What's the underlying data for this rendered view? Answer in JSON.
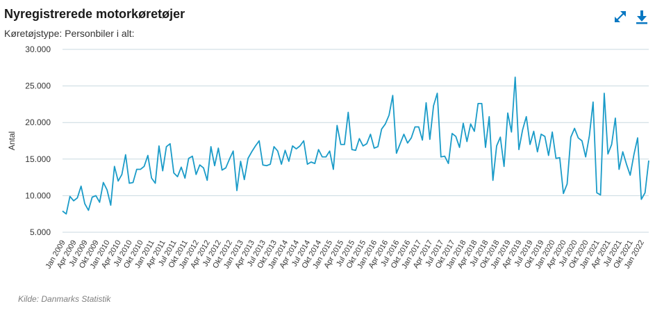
{
  "header": {
    "title": "Nyregistrerede motorkøretøjer",
    "subtitle": "Køretøjstype: Personbiler i alt:"
  },
  "toolbar": {
    "expand_icon": "expand-arrows-icon",
    "download_icon": "download-icon",
    "accent_color": "#0a78c2"
  },
  "source": "Kilde: Danmarks Statistik",
  "chart_data": {
    "type": "line",
    "ylabel": "Antal",
    "xlabel": "",
    "ylim": [
      5000,
      30000
    ],
    "yticks": [
      "5.000",
      "10.000",
      "15.000",
      "20.000",
      "25.000",
      "30.000"
    ],
    "ytick_values": [
      5000,
      10000,
      15000,
      20000,
      25000,
      30000
    ],
    "grid": true,
    "line_color": "#1a9bc8",
    "x_start": "2009-01",
    "xtick_labels": [
      "Jan 2009",
      "Apr 2009",
      "Jul 2009",
      "Okt 2009",
      "Jan 2010",
      "Apr 2010",
      "Jul 2010",
      "Okt 2010",
      "Jan 2011",
      "Apr 2011",
      "Jul 2011",
      "Okt 2011",
      "Jan 2012",
      "Apr 2012",
      "Jul 2012",
      "Okt 2012",
      "Jan 2013",
      "Apr 2013",
      "Jul 2013",
      "Okt 2013",
      "Jan 2014",
      "Apr 2014",
      "Jul 2014",
      "Okt 2014",
      "Jan 2015",
      "Apr 2015",
      "Jul 2015",
      "Okt 2015",
      "Jan 2016",
      "Apr 2016",
      "Jul 2016",
      "Okt 2016",
      "Jan 2017",
      "Apr 2017",
      "Jul 2017",
      "Okt 2017",
      "Jan 2018",
      "Apr 2018",
      "Jul 2018",
      "Okt 2018",
      "Jan 2019",
      "Apr 2019",
      "Jul 2019",
      "Okt 2019",
      "Jan 2020",
      "Apr 2020",
      "Jul 2020",
      "Okt 2020",
      "Jan 2021",
      "Apr 2021",
      "Jul 2021",
      "Okt 2021",
      "Jan 2022"
    ],
    "series": [
      {
        "values": [
          7900,
          7500,
          9900,
          9300,
          9700,
          11300,
          8900,
          8000,
          9800,
          10000,
          9100,
          11800,
          10800,
          8700,
          14000,
          12000,
          12900,
          15600,
          11700,
          11800,
          13600,
          13600,
          14000,
          15500,
          12400,
          11700,
          16800,
          13400,
          16700,
          17100,
          13100,
          12600,
          13900,
          12400,
          15100,
          15400,
          12900,
          14200,
          13800,
          12100,
          16700,
          14100,
          16500,
          13500,
          13800,
          15000,
          16100,
          10700,
          14700,
          12200,
          15100,
          16000,
          16800,
          17500,
          14200,
          14100,
          14300,
          16700,
          16100,
          14300,
          16200,
          14700,
          16800,
          16400,
          16800,
          17500,
          14300,
          14600,
          14400,
          16300,
          15300,
          15300,
          16100,
          13600,
          19600,
          17000,
          17000,
          21400,
          16300,
          16200,
          17800,
          16800,
          17100,
          18400,
          16500,
          16700,
          19100,
          19800,
          21000,
          23700,
          15800,
          17100,
          18400,
          17200,
          17900,
          19400,
          19400,
          17600,
          22700,
          17700,
          22300,
          24000,
          15300,
          15400,
          14400,
          18500,
          18100,
          16600,
          19900,
          17400,
          19800,
          18800,
          22600,
          22600,
          16600,
          20800,
          12100,
          16800,
          18000,
          14000,
          21300,
          18700,
          26200,
          16300,
          19000,
          20800,
          17000,
          18800,
          16000,
          18400,
          18100,
          15500,
          18700,
          15100,
          15200,
          10300,
          11600,
          18000,
          19200,
          17900,
          17500,
          15300,
          18200,
          22800,
          10400,
          10100,
          24000,
          15700,
          17000,
          20600,
          13600,
          16000,
          14300,
          12800,
          15600,
          17900,
          9500,
          10400,
          14800
        ]
      }
    ]
  }
}
